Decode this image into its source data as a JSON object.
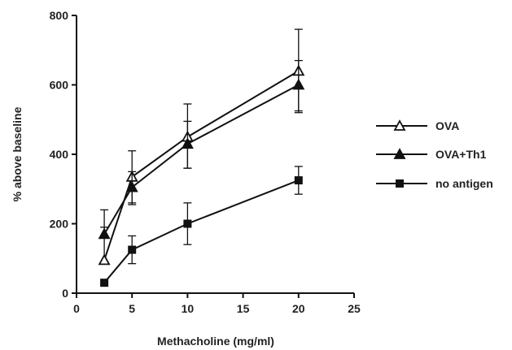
{
  "chart_data": {
    "type": "line",
    "xlabel": "Methacholine (mg/ml)",
    "ylabel": "% above baseline",
    "xlim": [
      0,
      25
    ],
    "ylim": [
      0,
      800
    ],
    "xticks": [
      0,
      5,
      10,
      15,
      20,
      25
    ],
    "yticks": [
      0,
      200,
      400,
      600,
      800
    ],
    "grid": false,
    "legend_position": "right",
    "x": [
      2.5,
      5,
      10,
      20
    ],
    "series": [
      {
        "name": "OVA",
        "marker": "open-triangle",
        "values": [
          95,
          335,
          450,
          640
        ],
        "error": [
          [
            95,
            95
          ],
          [
            80,
            75
          ],
          [
            90,
            95
          ],
          [
            115,
            120
          ]
        ]
      },
      {
        "name": "OVA+Th1",
        "marker": "filled-triangle",
        "values": [
          170,
          305,
          430,
          600
        ],
        "error": [
          [
            170,
            70
          ],
          [
            45,
            45
          ],
          [
            70,
            65
          ],
          [
            80,
            70
          ]
        ]
      },
      {
        "name": "no antigen",
        "marker": "filled-square",
        "values": [
          30,
          125,
          200,
          325
        ],
        "error": [
          [
            30,
            0
          ],
          [
            40,
            40
          ],
          [
            60,
            60
          ],
          [
            40,
            40
          ]
        ]
      }
    ]
  }
}
